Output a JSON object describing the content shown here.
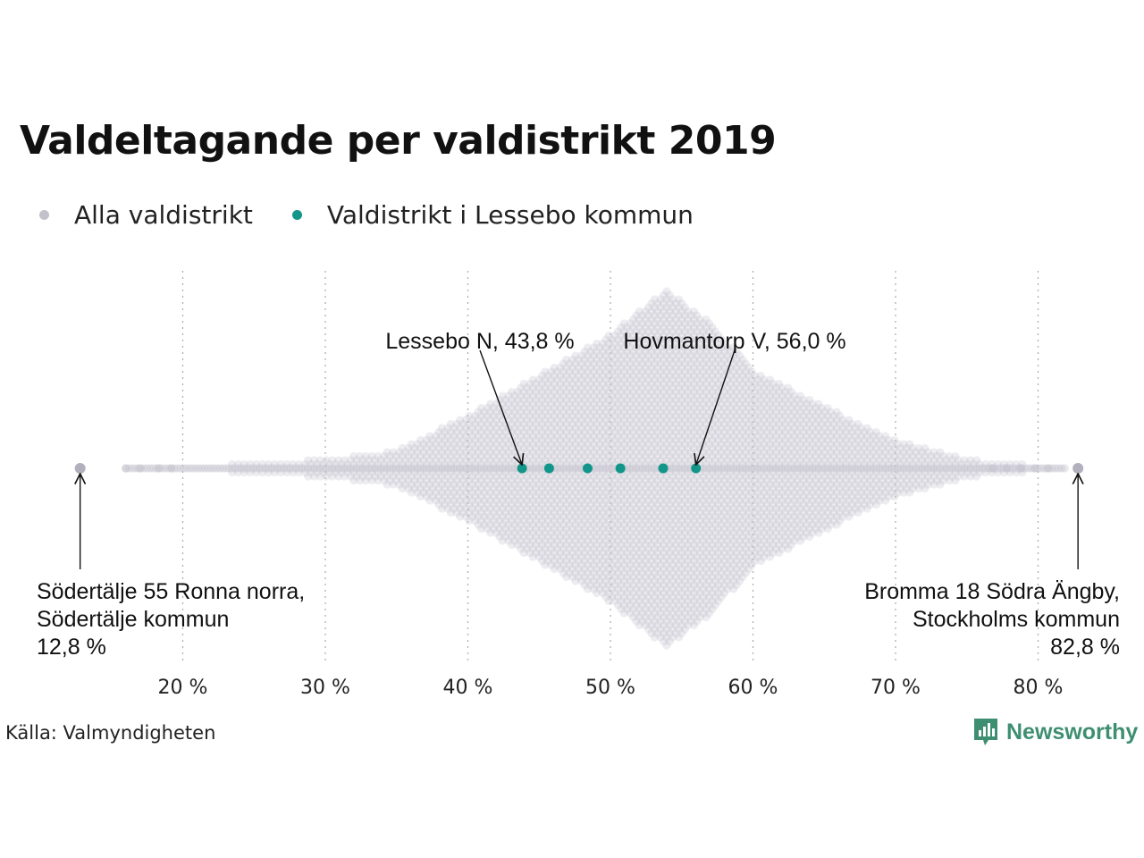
{
  "title": "Valdeltagande per valdistrikt 2019",
  "legend": [
    {
      "label": "Alla valdistrikt",
      "color": "#c2c1cc"
    },
    {
      "label": "Valdistrikt i Lessebo kommun",
      "color": "#13968a"
    }
  ],
  "source": "Källa: Valmyndigheten",
  "brand": {
    "name": "Newsworthy",
    "color": "#3e8f72",
    "icon": "bar-chart-speech-bubble-icon"
  },
  "chart_data": {
    "type": "scatter",
    "subtype": "beeswarm",
    "x_unit": "%",
    "xlim": [
      12,
      85
    ],
    "x_ticks": [
      20,
      30,
      40,
      50,
      60,
      70,
      80
    ],
    "x_tick_labels": [
      "20 %",
      "30 %",
      "40 %",
      "50 %",
      "60 %",
      "70 %",
      "80 %"
    ],
    "grid": "vertical dotted",
    "series": [
      {
        "name": "Alla valdistrikt",
        "color": "#c2c1cc",
        "distribution_profile": [
          {
            "x": 16,
            "spread": 0
          },
          {
            "x": 20,
            "spread": 2
          },
          {
            "x": 25,
            "spread": 6
          },
          {
            "x": 30,
            "spread": 10
          },
          {
            "x": 35,
            "spread": 20
          },
          {
            "x": 40,
            "spread": 60
          },
          {
            "x": 45,
            "spread": 105
          },
          {
            "x": 50,
            "spread": 150
          },
          {
            "x": 53.8,
            "spread": 200
          },
          {
            "x": 57,
            "spread": 165
          },
          {
            "x": 60,
            "spread": 110
          },
          {
            "x": 65,
            "spread": 70
          },
          {
            "x": 70,
            "spread": 32
          },
          {
            "x": 75,
            "spread": 10
          },
          {
            "x": 80,
            "spread": 3
          },
          {
            "x": 82,
            "spread": 0
          }
        ],
        "points": [
          12.8,
          82.8
        ]
      },
      {
        "name": "Valdistrikt i Lessebo kommun",
        "color": "#13968a",
        "points": [
          43.8,
          45.7,
          48.4,
          50.7,
          53.7,
          56.0
        ]
      }
    ],
    "annotations": [
      {
        "x": 43.8,
        "lines": [
          "Lessebo N, 43,8 %"
        ]
      },
      {
        "x": 56.0,
        "lines": [
          "Hovmantorp V, 56,0 %"
        ]
      },
      {
        "x": 12.8,
        "lines": [
          "Södertälje 55 Ronna norra,",
          "Södertälje kommun",
          "12,8 %"
        ]
      },
      {
        "x": 82.8,
        "lines": [
          "Bromma 18 Södra Ängby,",
          "Stockholms kommun",
          "82,8 %"
        ]
      }
    ]
  }
}
